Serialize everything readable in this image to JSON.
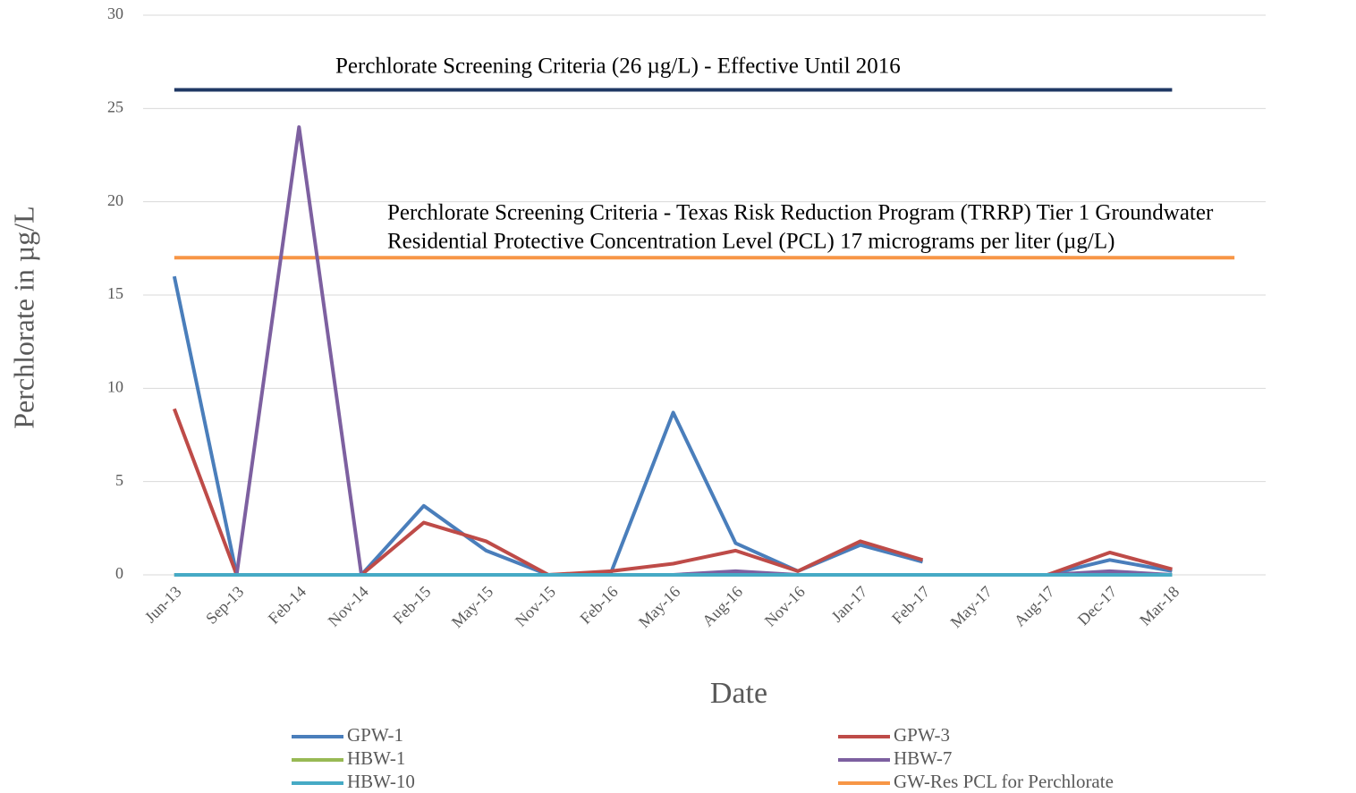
{
  "chart_data": {
    "type": "line",
    "ylabel": "Perchlorate in µg/L",
    "xlabel": "Date",
    "categories": [
      "Jun-13",
      "Sep-13",
      "Feb-14",
      "Nov-14",
      "Feb-15",
      "May-15",
      "Nov-15",
      "Feb-16",
      "May-16",
      "Aug-16",
      "Nov-16",
      "Jan-17",
      "Feb-17",
      "May-17",
      "Aug-17",
      "Dec-17",
      "Mar-18",
      null
    ],
    "ylim": [
      0,
      30
    ],
    "yticks": [
      0,
      5,
      10,
      15,
      20,
      25,
      30
    ],
    "grid": true,
    "annotations": [
      "Perchlorate Screening  Criteria (26 µg/L)  - Effective Until 2016",
      "Perchlorate Screening  Criteria - Texas Risk Reduction Program (TRRP) Tier 1 Groundwater",
      "Residential Protective Concentration Level (PCL) 17 micrograms per liter (µg/L)"
    ],
    "series": [
      {
        "name": "GPW-1",
        "color": "#4a7ebb",
        "values": [
          16,
          0,
          null,
          0,
          3.7,
          1.3,
          0,
          0.1,
          8.7,
          1.7,
          0.2,
          1.6,
          0.7,
          null,
          0,
          0.8,
          0.2,
          null
        ]
      },
      {
        "name": "GPW-3",
        "color": "#be4b48",
        "values": [
          8.9,
          0,
          null,
          0,
          2.8,
          1.8,
          0,
          0.2,
          0.6,
          1.3,
          0.2,
          1.8,
          0.8,
          null,
          0,
          1.2,
          0.3,
          null
        ]
      },
      {
        "name": "HBW-1",
        "color": "#98b954",
        "values": [
          0,
          0,
          null,
          0,
          0,
          0,
          0,
          0,
          0,
          0,
          0,
          0,
          0,
          0,
          0,
          0,
          0,
          null
        ]
      },
      {
        "name": "HBW-7",
        "color": "#7d60a0",
        "values": [
          0,
          0,
          24,
          0,
          0,
          0,
          0,
          0,
          0,
          0.2,
          0,
          0,
          0,
          0,
          0,
          0.2,
          0,
          null
        ]
      },
      {
        "name": "HBW-10",
        "color": "#46aac5",
        "values": [
          0,
          0,
          0,
          0,
          0,
          0,
          0,
          0,
          0,
          0,
          0,
          0,
          0,
          0,
          0,
          0,
          0,
          null
        ]
      },
      {
        "name": "GW-Res PCL for Perchlorate",
        "color": "#f79646",
        "values": [
          17,
          17,
          17,
          17,
          17,
          17,
          17,
          17,
          17,
          17,
          17,
          17,
          17,
          17,
          17,
          17,
          17,
          17
        ]
      },
      {
        "color": "#1f3864",
        "values": [
          26,
          26,
          26,
          26,
          26,
          26,
          26,
          26,
          26,
          26,
          26,
          26,
          26,
          26,
          26,
          26,
          26,
          null
        ]
      }
    ]
  }
}
